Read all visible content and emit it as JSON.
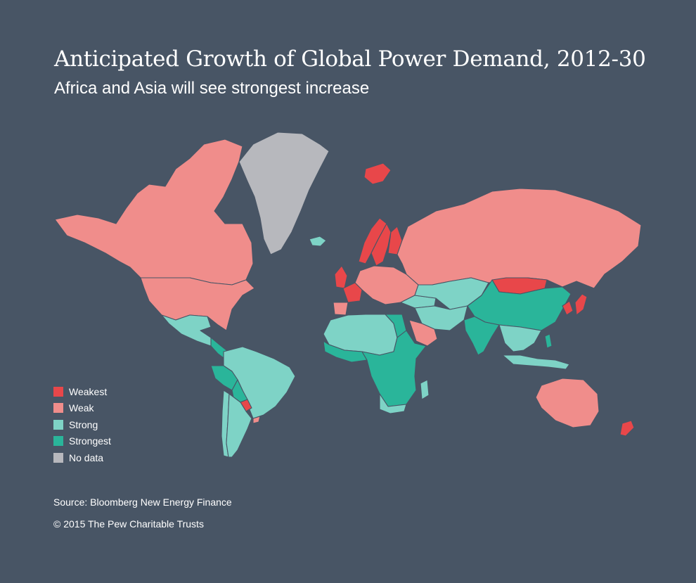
{
  "header": {
    "title": "Anticipated Growth of Global Power Demand, 2012-30",
    "subtitle": "Africa and Asia will see strongest increase"
  },
  "colors": {
    "background": "#485565",
    "weakest": "#e8474a",
    "weak": "#f08d8b",
    "strong": "#7ed3c6",
    "strongest": "#2ab59a",
    "no_data": "#b7b8bd",
    "text": "#ffffff"
  },
  "legend": [
    {
      "label": "Weakest",
      "category": "weakest",
      "color": "#e8474a"
    },
    {
      "label": "Weak",
      "category": "weak",
      "color": "#f08d8b"
    },
    {
      "label": "Strong",
      "category": "strong",
      "color": "#7ed3c6"
    },
    {
      "label": "Strongest",
      "category": "strongest",
      "color": "#2ab59a"
    },
    {
      "label": "No data",
      "category": "no_data",
      "color": "#b7b8bd"
    }
  ],
  "regions": [
    {
      "region": "Canada",
      "category": "weak"
    },
    {
      "region": "United States",
      "category": "weak"
    },
    {
      "region": "Greenland",
      "category": "no_data"
    },
    {
      "region": "Mexico",
      "category": "strong"
    },
    {
      "region": "Central America",
      "category": "strongest"
    },
    {
      "region": "Brazil",
      "category": "strong"
    },
    {
      "region": "Peru",
      "category": "strongest"
    },
    {
      "region": "Bolivia",
      "category": "strongest"
    },
    {
      "region": "Argentina",
      "category": "strong"
    },
    {
      "region": "Chile",
      "category": "strong"
    },
    {
      "region": "Paraguay",
      "category": "weakest"
    },
    {
      "region": "Uruguay",
      "category": "weak"
    },
    {
      "region": "Iceland",
      "category": "strong"
    },
    {
      "region": "Norway",
      "category": "weakest"
    },
    {
      "region": "Sweden",
      "category": "weakest"
    },
    {
      "region": "Finland",
      "category": "weakest"
    },
    {
      "region": "United Kingdom",
      "category": "weakest"
    },
    {
      "region": "France",
      "category": "weakest"
    },
    {
      "region": "Spain",
      "category": "weak"
    },
    {
      "region": "Central Europe",
      "category": "weak"
    },
    {
      "region": "Russia",
      "category": "weak"
    },
    {
      "region": "Svalbard",
      "category": "weakest"
    },
    {
      "region": "Turkey",
      "category": "strong"
    },
    {
      "region": "Central Asia",
      "category": "strong"
    },
    {
      "region": "Middle East",
      "category": "strong"
    },
    {
      "region": "Saudi Arabia",
      "category": "weak"
    },
    {
      "region": "Egypt",
      "category": "strongest"
    },
    {
      "region": "North Africa",
      "category": "strong"
    },
    {
      "region": "West Africa",
      "category": "strongest"
    },
    {
      "region": "Central and East Africa",
      "category": "strongest"
    },
    {
      "region": "Southern Africa",
      "category": "strong"
    },
    {
      "region": "Madagascar",
      "category": "strong"
    },
    {
      "region": "China",
      "category": "strongest"
    },
    {
      "region": "India",
      "category": "strongest"
    },
    {
      "region": "Mongolia",
      "category": "weakest"
    },
    {
      "region": "Japan",
      "category": "weakest"
    },
    {
      "region": "Korea",
      "category": "weakest"
    },
    {
      "region": "Southeast Asia",
      "category": "strong"
    },
    {
      "region": "Philippines",
      "category": "strongest"
    },
    {
      "region": "Indonesia",
      "category": "strong"
    },
    {
      "region": "Australia",
      "category": "weak"
    },
    {
      "region": "New Zealand",
      "category": "weakest"
    }
  ],
  "footer": {
    "source": "Source: Bloomberg New Energy Finance",
    "copyright": "© 2015 The Pew Charitable Trusts"
  }
}
